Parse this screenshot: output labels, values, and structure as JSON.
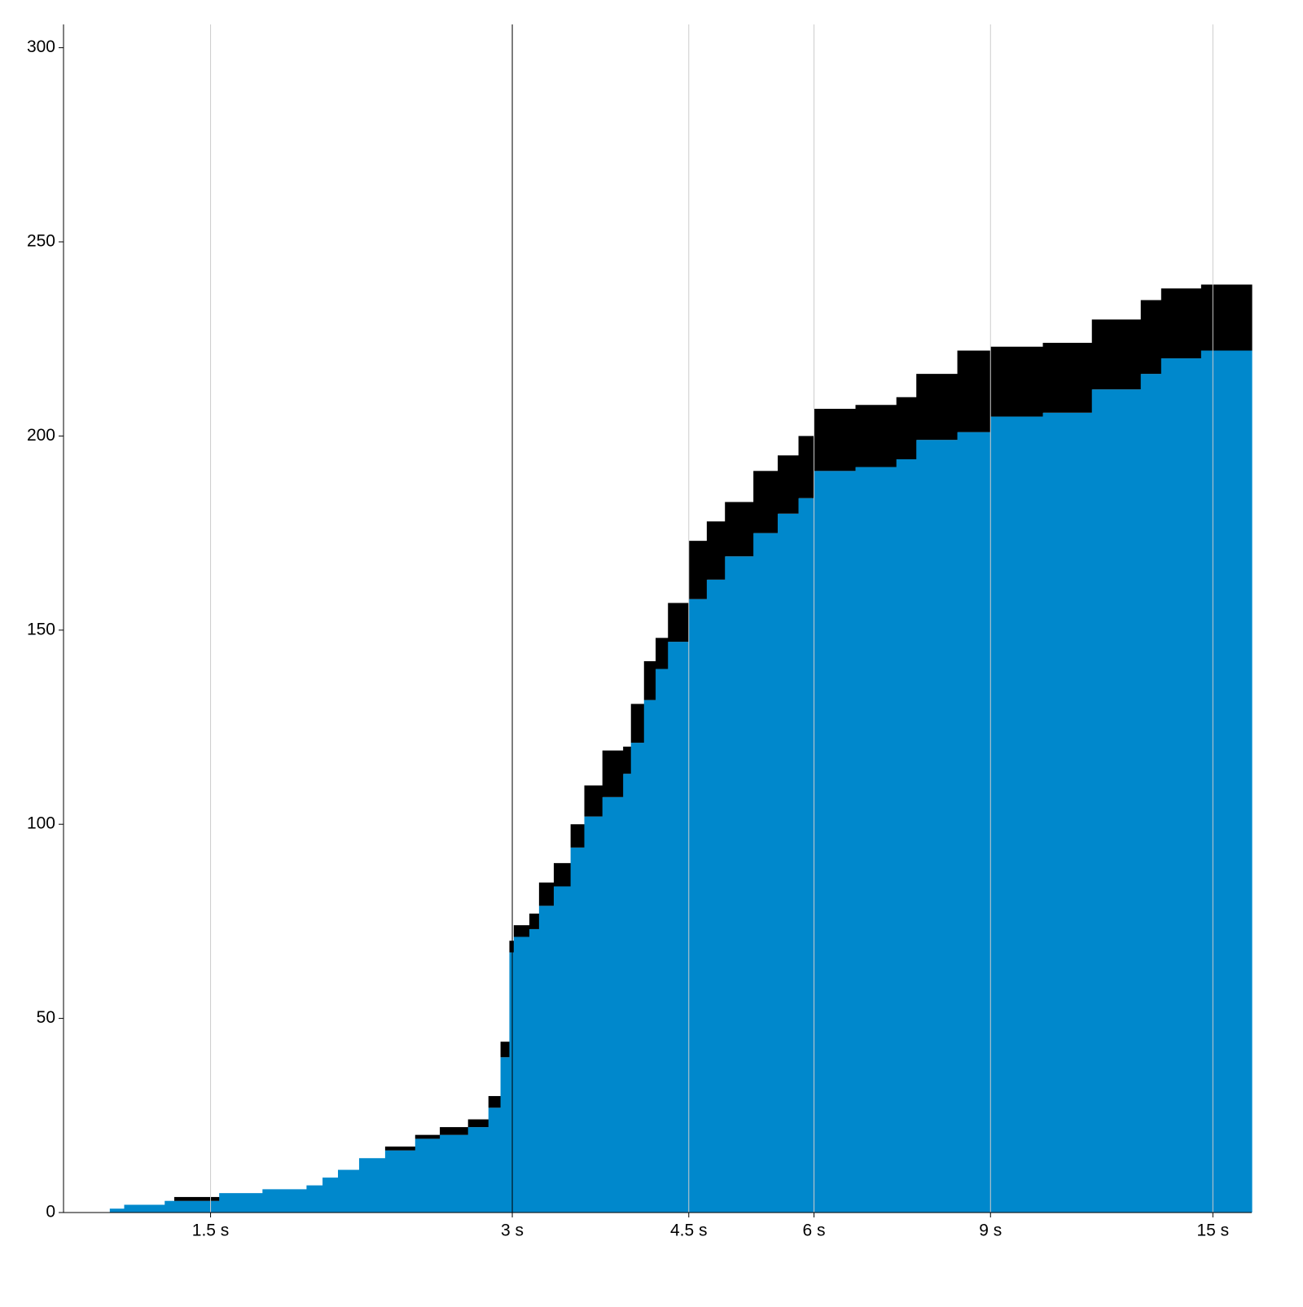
{
  "chart_data": {
    "type": "stacked-step-area",
    "x": [
      1.19,
      1.23,
      1.35,
      1.38,
      1.53,
      1.69,
      1.87,
      1.94,
      2.01,
      2.11,
      2.24,
      2.4,
      2.54,
      2.71,
      2.84,
      2.92,
      2.98,
      3.01,
      3.12,
      3.19,
      3.3,
      3.43,
      3.54,
      3.69,
      3.87,
      3.94,
      4.06,
      4.17,
      4.29,
      4.5,
      4.69,
      4.89,
      5.22,
      5.52,
      5.79,
      6.0,
      6.6,
      7.25,
      7.59,
      8.34,
      9.0,
      10.15,
      11.36,
      12.71,
      13.32,
      14.6
    ],
    "series": [
      {
        "color": "#0088cc",
        "values": [
          1,
          2,
          3,
          3,
          5,
          6,
          7,
          9,
          11,
          14,
          16,
          19,
          20,
          22,
          27,
          40,
          67,
          71,
          73,
          79,
          84,
          94,
          102,
          107,
          113,
          121,
          132,
          140,
          147,
          158,
          163,
          169,
          175,
          180,
          184,
          191,
          192,
          194,
          199,
          201,
          205,
          206,
          212,
          216,
          220,
          222
        ]
      },
      {
        "color": "#000000",
        "values": [
          0,
          0,
          0,
          1,
          0,
          0,
          0,
          0,
          0,
          0,
          1,
          1,
          2,
          2,
          3,
          4,
          3,
          3,
          4,
          6,
          6,
          6,
          8,
          12,
          7,
          10,
          10,
          8,
          10,
          15,
          15,
          14,
          16,
          15,
          16,
          16,
          16,
          16,
          17,
          21,
          18,
          18,
          18,
          19,
          18,
          17
        ]
      }
    ],
    "xlim": [
      1.07,
      16.4
    ],
    "log_x": true,
    "xticks": [
      {
        "value": 1.5,
        "label": "1.5 s"
      },
      {
        "value": 3,
        "label": "3 s"
      },
      {
        "value": 4.5,
        "label": "4.5 s"
      },
      {
        "value": 6,
        "label": "6 s"
      },
      {
        "value": 9,
        "label": "9 s"
      },
      {
        "value": 15,
        "label": "15 s"
      }
    ],
    "ylim": [
      0,
      306
    ],
    "yticks": [
      0,
      50,
      100,
      150,
      200,
      250,
      300
    ],
    "grid": true,
    "reference_line": 3
  }
}
